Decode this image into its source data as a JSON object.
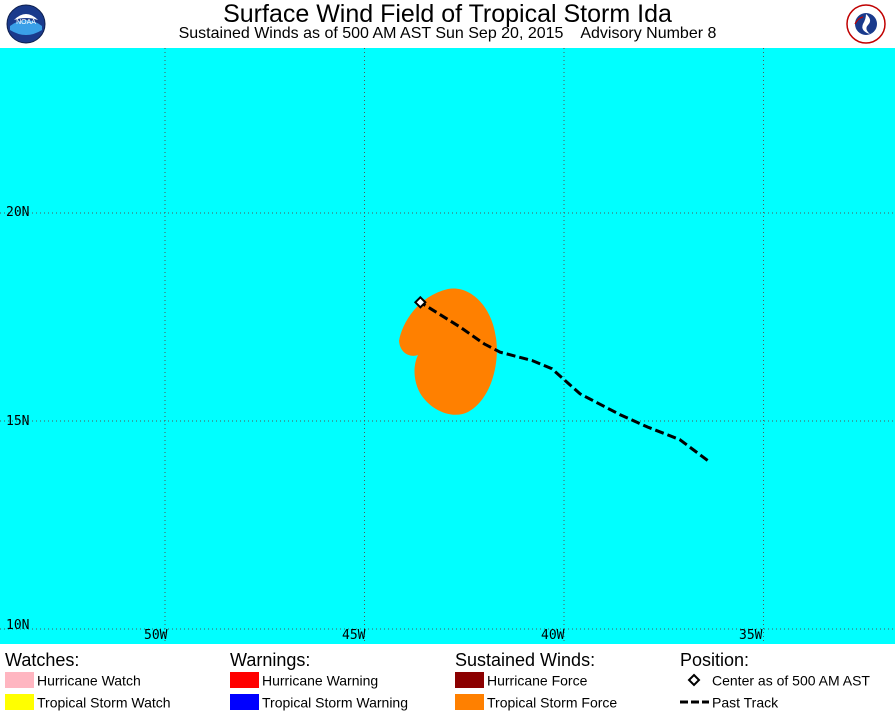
{
  "header": {
    "title": "Surface Wind Field of Tropical Storm Ida",
    "subtitle_left": "Sustained Winds as of 500 AM AST Sun Sep 20, 2015",
    "subtitle_right": "Advisory Number 8"
  },
  "logos": {
    "left": "noaa-logo",
    "right": "national-weather-service-logo",
    "right_text": "NATIONAL WEATHER SERVICE"
  },
  "map": {
    "ocean_color": "#00FFFF",
    "grid_color": "#555555",
    "lat_labels": [
      "20N",
      "15N",
      "10N"
    ],
    "lon_labels": [
      "50W",
      "45W",
      "40W",
      "35W"
    ],
    "wind_field_color": "#FF8000",
    "track_color": "#000000",
    "center": {
      "lat": 16.7,
      "lon": -43.6
    },
    "past_track": [
      {
        "lat": 12.9,
        "lon": -36.4
      },
      {
        "lat": 13.4,
        "lon": -37.1
      },
      {
        "lat": 13.7,
        "lon": -37.9
      },
      {
        "lat": 14.0,
        "lon": -38.6
      },
      {
        "lat": 14.5,
        "lon": -39.6
      },
      {
        "lat": 15.1,
        "lon": -40.3
      },
      {
        "lat": 15.3,
        "lon": -40.8
      },
      {
        "lat": 15.5,
        "lon": -41.6
      },
      {
        "lat": 15.7,
        "lon": -42.0
      },
      {
        "lat": 16.1,
        "lon": -42.6
      },
      {
        "lat": 16.7,
        "lon": -43.6
      }
    ]
  },
  "legend": {
    "watches": {
      "heading": "Watches:",
      "items": [
        {
          "label": "Hurricane Watch",
          "color": "#FFB6C1"
        },
        {
          "label": "Tropical Storm Watch",
          "color": "#FFFF00"
        }
      ]
    },
    "warnings": {
      "heading": "Warnings:",
      "items": [
        {
          "label": "Hurricane Warning",
          "color": "#FF0000"
        },
        {
          "label": "Tropical Storm Warning",
          "color": "#0000FF"
        }
      ]
    },
    "winds": {
      "heading": "Sustained Winds:",
      "items": [
        {
          "label": "Hurricane Force",
          "color": "#8B0000"
        },
        {
          "label": "Tropical Storm Force",
          "color": "#FF8000"
        }
      ]
    },
    "position": {
      "heading": "Position:",
      "center_label": "Center as of 500 AM AST",
      "track_label": "Past Track"
    }
  }
}
